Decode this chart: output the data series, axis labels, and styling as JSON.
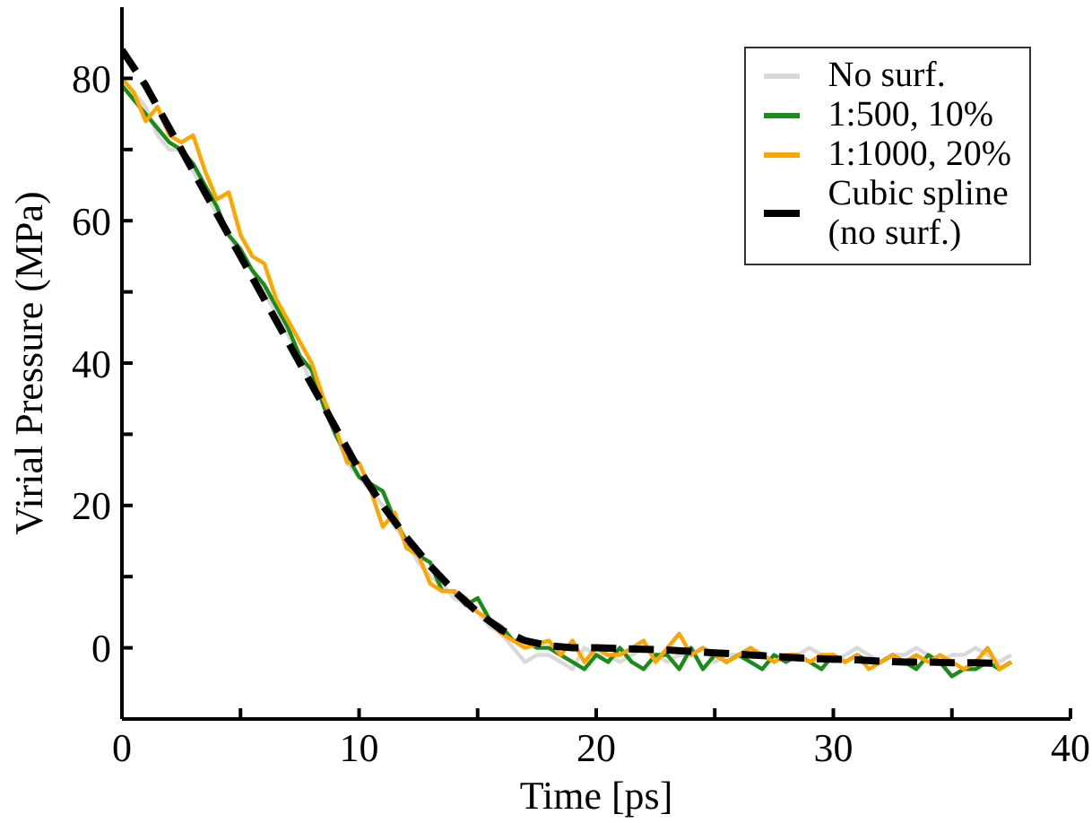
{
  "chart_data": {
    "type": "line",
    "xlabel": "Time [ps]",
    "ylabel": "Virial Pressure (MPa)",
    "x": [
      0,
      0.5,
      1,
      1.5,
      2,
      2.5,
      3,
      3.5,
      4,
      4.5,
      5,
      5.5,
      6,
      6.5,
      7,
      7.5,
      8,
      8.5,
      9,
      9.5,
      10,
      10.5,
      11,
      11.5,
      12,
      12.5,
      13,
      13.5,
      14,
      14.5,
      15,
      15.5,
      16,
      16.5,
      17,
      17.5,
      18,
      18.5,
      19,
      19.5,
      20,
      20.5,
      21,
      21.5,
      22,
      22.5,
      23,
      23.5,
      24,
      24.5,
      25,
      25.5,
      26,
      26.5,
      27,
      27.5,
      28,
      28.5,
      29,
      29.5,
      30,
      30.5,
      31,
      31.5,
      32,
      32.5,
      33,
      33.5,
      34,
      34.5,
      35,
      35.5,
      36,
      36.5,
      37,
      37.5
    ],
    "series": [
      {
        "name": "No surf.",
        "color": "#d9d9d9",
        "values": [
          80,
          78,
          76,
          72,
          70,
          70,
          67,
          64,
          61,
          58,
          55,
          53,
          50,
          47,
          44,
          41,
          37,
          35,
          30,
          26,
          24,
          22,
          20,
          17,
          15,
          12,
          10,
          9,
          7,
          6,
          5,
          3,
          2,
          0,
          -2,
          -1,
          -1,
          -2,
          -3,
          0,
          -1,
          -1,
          -2,
          -1,
          0,
          -1,
          -2,
          -1,
          -1,
          0,
          -2,
          -1,
          -1,
          0,
          -1,
          -2,
          -1,
          -1,
          0,
          -1,
          -2,
          -1,
          0,
          -1,
          -2,
          -1,
          -1,
          0,
          -1,
          -2,
          -1,
          -1,
          0,
          -1,
          -2,
          -1
        ]
      },
      {
        "name": "1:500, 10%",
        "color": "#1a8c1a",
        "values": [
          79,
          77,
          75,
          73,
          71,
          70,
          68,
          65,
          62,
          58,
          56,
          53,
          51,
          48,
          45,
          41,
          39,
          34,
          30,
          27,
          24,
          23,
          22,
          18,
          15,
          13,
          12,
          8,
          8,
          6,
          7,
          4,
          3,
          1,
          1,
          0,
          0,
          -1,
          -2,
          -3,
          -1,
          -2,
          0,
          -2,
          -3,
          -1,
          -1,
          -3,
          0,
          -3,
          -1,
          -2,
          -1,
          -2,
          -3,
          -1,
          -2,
          -1,
          -2,
          -3,
          -1,
          -2,
          -1,
          -2,
          -2,
          -1,
          -2,
          -3,
          -1,
          -2,
          -4,
          -3,
          -3,
          -2,
          -3,
          -2
        ]
      },
      {
        "name": "1:1000, 20%",
        "color": "#ffa500",
        "values": [
          80,
          78,
          74,
          76,
          72,
          71,
          72,
          67,
          63,
          64,
          58,
          55,
          54,
          49,
          46,
          43,
          40,
          35,
          31,
          26,
          26,
          22,
          17,
          19,
          14,
          13,
          9,
          8,
          8,
          7,
          5,
          4,
          2,
          1,
          0,
          0.5,
          1,
          -1,
          1,
          -2,
          0,
          -1,
          -1,
          0,
          1,
          -2,
          0,
          2,
          -1,
          0,
          -1,
          -2,
          -1,
          0,
          -1,
          -2,
          -1,
          -1,
          -2,
          -1,
          -1,
          -2,
          -1,
          -3,
          -2,
          -1,
          -2,
          -1,
          -2,
          -1,
          -2,
          -3,
          -2,
          0,
          -3,
          -2
        ]
      },
      {
        "name": "Cubic spline\n(no surf.)",
        "color": "#000000",
        "line_style": "dashed",
        "x": [
          0,
          1,
          2,
          3,
          4,
          5,
          6,
          7,
          8,
          9,
          10,
          11,
          12,
          13,
          14,
          15,
          16,
          17,
          18,
          19,
          20,
          21,
          22,
          23,
          24,
          25,
          26,
          27,
          28,
          29,
          30,
          31,
          32,
          33,
          34,
          35,
          36,
          37
        ],
        "values": [
          84,
          79,
          73,
          67,
          61,
          55,
          49,
          43,
          37,
          31,
          25,
          20,
          15.5,
          11.5,
          8,
          5,
          2.5,
          1,
          0.3,
          0,
          0,
          -0.1,
          -0.2,
          -0.3,
          -0.5,
          -0.7,
          -0.9,
          -1.1,
          -1.3,
          -1.5,
          -1.6,
          -1.7,
          -1.9,
          -2,
          -2,
          -2.1,
          -2.1,
          -2.2
        ]
      }
    ],
    "xlim": [
      0,
      40
    ],
    "xticks": [
      0,
      {
        "value": 5,
        "label": null
      },
      10,
      {
        "value": 15,
        "label": null
      },
      20,
      {
        "value": 25,
        "label": null
      },
      30,
      {
        "value": 35,
        "label": null
      },
      40
    ],
    "ylim": [
      -10,
      90
    ],
    "yticks": [
      {
        "value": -10,
        "label": null
      },
      0,
      {
        "value": 10,
        "label": null
      },
      20,
      {
        "value": 30,
        "label": null
      },
      40,
      {
        "value": 50,
        "label": null
      },
      60,
      {
        "value": 70,
        "label": null
      },
      80
    ],
    "legend": "top right",
    "grid": false,
    "line_style": "solid",
    "marker": "none"
  }
}
